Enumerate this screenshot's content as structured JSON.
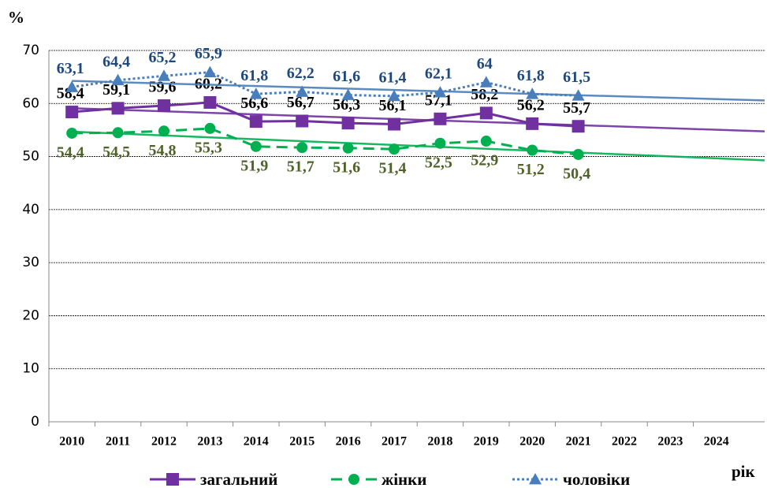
{
  "chart_data": {
    "type": "line",
    "y_label": "%",
    "x_label": "рік",
    "categories": [
      "2010",
      "2011",
      "2012",
      "2013",
      "2014",
      "2015",
      "2016",
      "2017",
      "2018",
      "2019",
      "2020",
      "2021",
      "2022",
      "2023",
      "2024"
    ],
    "series": [
      {
        "name": "загальний",
        "color": "#7030a0",
        "dash": "solid",
        "marker": "square",
        "label_color": "#000000",
        "label_pos": "above",
        "values": [
          58.4,
          59.1,
          59.6,
          60.2,
          56.6,
          56.7,
          56.3,
          56.1,
          57.1,
          58.2,
          56.2,
          55.7,
          null,
          null,
          null
        ],
        "value_labels": [
          "58,4",
          "59,1",
          "59,6",
          "60,2",
          "56,6",
          "56,7",
          "56,3",
          "56,1",
          "57,1",
          "58,2",
          "56,2",
          "55,7",
          null,
          null,
          null
        ]
      },
      {
        "name": "жінки",
        "color": "#00b050",
        "dash": "dashed",
        "marker": "circle",
        "label_color": "#4f6228",
        "label_pos": "below",
        "values": [
          54.4,
          54.5,
          54.8,
          55.3,
          51.9,
          51.7,
          51.6,
          51.4,
          52.5,
          52.9,
          51.2,
          50.4,
          null,
          null,
          null
        ],
        "value_labels": [
          "54,4",
          "54,5",
          "54,8",
          "55,3",
          "51,9",
          "51,7",
          "51,6",
          "51,4",
          "52,5",
          "52,9",
          "51,2",
          "50,4",
          null,
          null,
          null
        ]
      },
      {
        "name": "чоловіки",
        "color": "#4a7ebb",
        "dash": "dotted",
        "marker": "triangle",
        "label_color": "#1f497d",
        "label_pos": "above",
        "values": [
          63.1,
          64.4,
          65.2,
          65.9,
          61.8,
          62.2,
          61.6,
          61.4,
          62.1,
          64,
          61.8,
          61.5,
          null,
          null,
          null
        ],
        "value_labels": [
          "63,1",
          "64,4",
          "65,2",
          "65,9",
          "61,8",
          "62,2",
          "61,6",
          "61,4",
          "62,1",
          "64",
          "61,8",
          "61,5",
          null,
          null,
          null
        ]
      }
    ],
    "trendline": true,
    "ylim": [
      0,
      70
    ],
    "yticks": [
      0,
      10,
      20,
      30,
      40,
      50,
      60,
      70
    ],
    "grid": true,
    "legend": "bottom"
  }
}
